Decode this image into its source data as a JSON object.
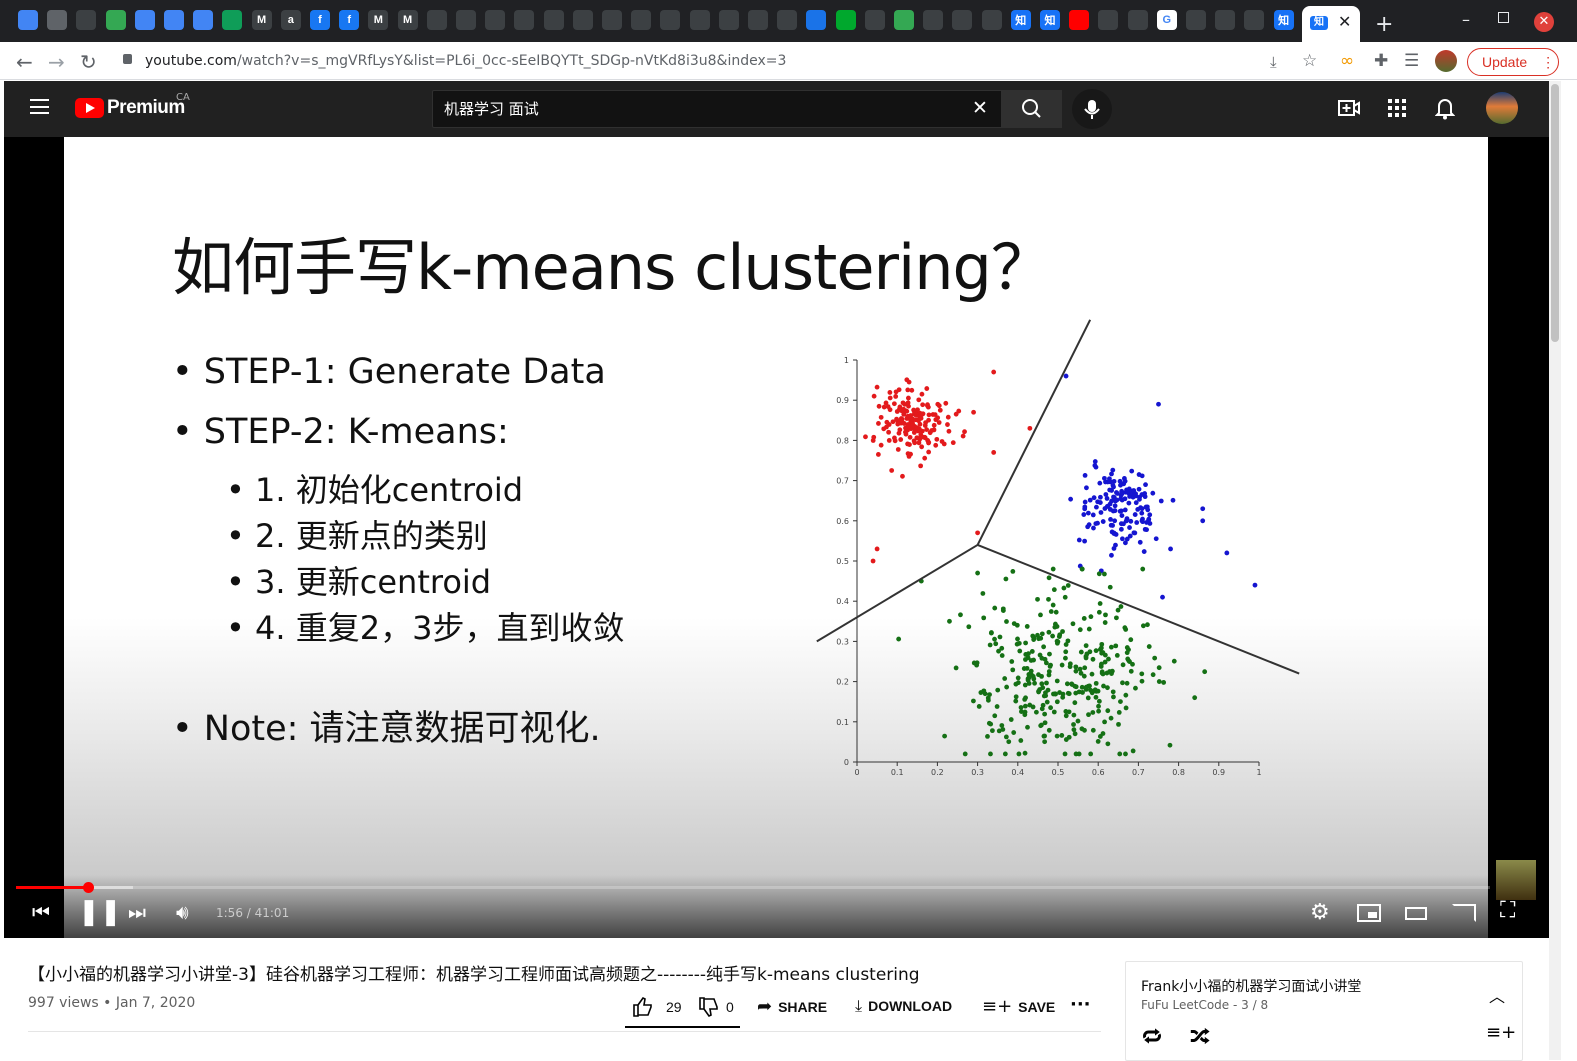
{
  "browser": {
    "url_domain": "youtube.com",
    "url_path": "/watch?v=s_mgVRfLysY&list=PL6i_0cc-sEeIBQYTt_SDGp-nVtKd8i3u8&index=3",
    "update_label": "Update",
    "tabs": [
      {
        "label": "",
        "icon": "blue-square-icon",
        "color": "#4285f4"
      },
      {
        "label": "",
        "icon": "grid-icon",
        "color": "#5f6368"
      },
      {
        "label": "",
        "icon": "circle-icon",
        "color": "#3c4043"
      },
      {
        "label": "",
        "icon": "drive-icon",
        "color": "#34a853"
      },
      {
        "label": "",
        "icon": "docs-icon",
        "color": "#4285f4"
      },
      {
        "label": "",
        "icon": "docs-icon",
        "color": "#4285f4"
      },
      {
        "label": "",
        "icon": "docs-icon",
        "color": "#4285f4"
      },
      {
        "label": "",
        "icon": "sheets-icon",
        "color": "#0f9d58"
      },
      {
        "label": "M",
        "icon": "gmail-icon",
        "color": "#3c4043"
      },
      {
        "label": "a",
        "icon": "amazon-icon",
        "color": "#3c4043"
      },
      {
        "label": "f",
        "icon": "facebook-icon",
        "color": "#1877f2"
      },
      {
        "label": "f",
        "icon": "facebook-icon",
        "color": "#1877f2"
      },
      {
        "label": "M",
        "icon": "gmail-icon",
        "color": "#3c4043"
      },
      {
        "label": "M",
        "icon": "gmail-icon",
        "color": "#3c4043"
      },
      {
        "label": "",
        "icon": "hex-icon",
        "color": "#3c4043"
      },
      {
        "label": "",
        "icon": "hex-icon",
        "color": "#3c4043"
      },
      {
        "label": "",
        "icon": "eye-icon",
        "color": "#3c4043"
      },
      {
        "label": "",
        "icon": "eye-icon",
        "color": "#3c4043"
      },
      {
        "label": "",
        "icon": "eye-icon",
        "color": "#3c4043"
      },
      {
        "label": "",
        "icon": "eye-icon",
        "color": "#3c4043"
      },
      {
        "label": "",
        "icon": "eye-icon",
        "color": "#3c4043"
      },
      {
        "label": "",
        "icon": "eye-icon",
        "color": "#3c4043"
      },
      {
        "label": "",
        "icon": "eye-icon",
        "color": "#3c4043"
      },
      {
        "label": "",
        "icon": "eye-icon",
        "color": "#3c4043"
      },
      {
        "label": "",
        "icon": "eye-icon",
        "color": "#3c4043"
      },
      {
        "label": "",
        "icon": "eye-icon",
        "color": "#3c4043"
      },
      {
        "label": "",
        "icon": "eye-icon",
        "color": "#3c4043"
      },
      {
        "label": "",
        "icon": "diamond-icon",
        "color": "#1a73e8"
      },
      {
        "label": "",
        "icon": "evernote-icon",
        "color": "#00a82d"
      },
      {
        "label": "",
        "icon": "hex-icon",
        "color": "#3c4043"
      },
      {
        "label": "",
        "icon": "leaf-icon",
        "color": "#34a853"
      },
      {
        "label": "",
        "icon": "github-icon",
        "color": "#3c4043"
      },
      {
        "label": "",
        "icon": "github-icon",
        "color": "#3c4043"
      },
      {
        "label": "",
        "icon": "infinity-icon",
        "color": "#3c4043"
      },
      {
        "label": "知",
        "icon": "zhihu-icon",
        "color": "#1772f6"
      },
      {
        "label": "知",
        "icon": "zhihu-icon",
        "color": "#1772f6"
      },
      {
        "label": "",
        "icon": "youtube-icon",
        "color": "#ff0000"
      },
      {
        "label": "",
        "icon": "circle-icon",
        "color": "#3c4043"
      },
      {
        "label": "",
        "icon": "power-icon",
        "color": "#3c4043"
      },
      {
        "label": "G",
        "icon": "google-icon",
        "color": "#ffffff"
      },
      {
        "label": "",
        "icon": "weibo-icon",
        "color": "#3c4043"
      },
      {
        "label": "",
        "icon": "search-tab-icon",
        "color": "#3c4043"
      },
      {
        "label": "",
        "icon": "circle-icon",
        "color": "#3c4043"
      },
      {
        "label": "知",
        "icon": "zhihu-icon",
        "color": "#1772f6"
      }
    ]
  },
  "youtube": {
    "logo_text": "Premium",
    "country": "CA",
    "search_query": "机器学习 面试"
  },
  "slide": {
    "title": "如何手写k-means clustering？",
    "bullets": [
      "STEP-1: Generate Data",
      "STEP-2: K-means:",
      "1. 初始化centroid",
      "2. 更新点的类别",
      "3. 更新centroid",
      "4. 重复2，3步，直到收敛",
      "Note: 请注意数据可视化."
    ]
  },
  "chart_data": {
    "type": "scatter",
    "xlim": [
      0,
      1
    ],
    "ylim": [
      0,
      1
    ],
    "x_ticks": [
      "0",
      "0.1",
      "0.2",
      "0.3",
      "0.4",
      "0.5",
      "0.6",
      "0.7",
      "0.8",
      "0.9",
      "1"
    ],
    "y_ticks": [
      "0",
      "0.1",
      "0.2",
      "0.3",
      "0.4",
      "0.5",
      "0.6",
      "0.7",
      "0.8",
      "0.9",
      "1"
    ],
    "series": [
      {
        "color": "#e31a1c",
        "center": [
          0.14,
          0.85
        ],
        "spread": 0.045,
        "count": 170,
        "outliers": [
          [
            0.34,
            0.97
          ],
          [
            0.34,
            0.77
          ],
          [
            0.43,
            0.83
          ],
          [
            0.05,
            0.53
          ],
          [
            0.04,
            0.5
          ],
          [
            0.3,
            0.57
          ],
          [
            0.29,
            0.87
          ]
        ]
      },
      {
        "color": "#1515d0",
        "center": [
          0.65,
          0.63
        ],
        "spread": 0.05,
        "count": 150,
        "outliers": [
          [
            0.52,
            0.96
          ],
          [
            0.75,
            0.89
          ],
          [
            0.86,
            0.63
          ],
          [
            0.86,
            0.6
          ],
          [
            0.92,
            0.52
          ],
          [
            0.99,
            0.44
          ],
          [
            0.76,
            0.41
          ],
          [
            0.78,
            0.53
          ]
        ]
      },
      {
        "color": "#157015",
        "center": [
          0.5,
          0.23
        ],
        "spread": 0.12,
        "count": 330,
        "outliers": [
          [
            0.84,
            0.16
          ],
          [
            0.16,
            0.45
          ],
          [
            0.23,
            0.35
          ],
          [
            0.3,
            0.47
          ]
        ]
      }
    ],
    "boundaries": [
      [
        [
          0.3,
          0.54
        ],
        [
          0.58,
          1.1
        ]
      ],
      [
        [
          0.3,
          0.54
        ],
        [
          -0.1,
          0.3
        ]
      ],
      [
        [
          0.3,
          0.54
        ],
        [
          1.1,
          0.22
        ]
      ]
    ]
  },
  "player": {
    "time": "1:56 / 41:01",
    "progress": 0.047
  },
  "video": {
    "title": "【小小福的机器学习小讲堂-3】硅谷机器学习工程师：机器学习工程师面试高频题之--------纯手写k-means clustering",
    "views": "997 views • Jan 7, 2020",
    "likes": "29",
    "dislikes": "0",
    "share": "SHARE",
    "download": "DOWNLOAD",
    "save": "SAVE"
  },
  "playlist": {
    "title": "Frank小小福的机器学习面试小讲堂",
    "subtitle": "FuFu LeetCode - 3 / 8"
  }
}
